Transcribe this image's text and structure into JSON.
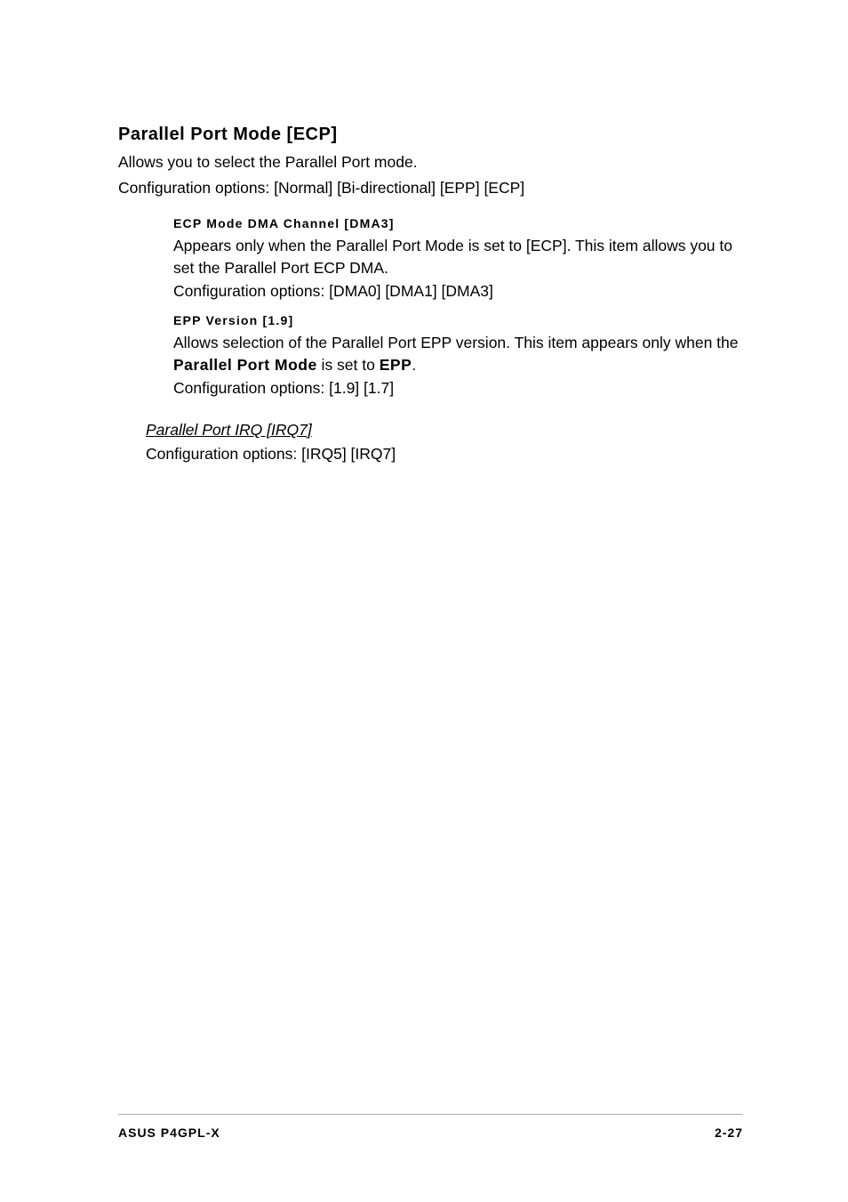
{
  "section": {
    "heading": "Parallel Port Mode [ECP]",
    "desc_line1": "Allows you to select the Parallel Port  mode.",
    "desc_line2": "Configuration options: [Normal] [Bi-directional] [EPP] [ECP]",
    "sub1": {
      "heading": "ECP Mode DMA Channel [DMA3]",
      "body": "Appears only when the Parallel Port Mode is set to [ECP]. This item allows you to set the Parallel Port ECP DMA.",
      "config": "Configuration options: [DMA0] [DMA1] [DMA3]"
    },
    "sub2": {
      "heading": "EPP Version [1.9]",
      "body_part1": "Allows selection of the Parallel Port EPP version. This item appears only when the ",
      "bold1": "Parallel Port Mode",
      "body_part2": " is set to ",
      "bold2": "EPP",
      "body_part3": ".",
      "config": "Configuration options: [1.9] [1.7]"
    },
    "irq": {
      "heading": "Parallel Port IRQ [IRQ7]",
      "config": "Configuration options: [IRQ5] [IRQ7]"
    }
  },
  "footer": {
    "left": "ASUS P4GPL-X",
    "right": "2-27"
  },
  "colors": {
    "background": "#ffffff",
    "text": "#000000",
    "border": "#aaaaaa"
  }
}
